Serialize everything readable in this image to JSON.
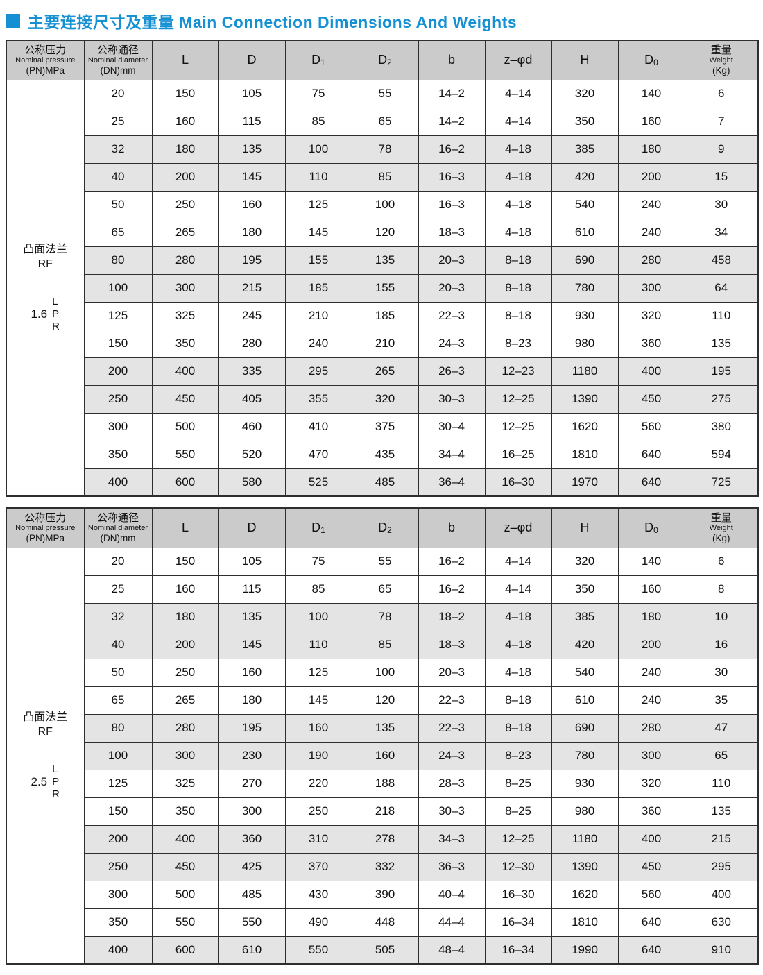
{
  "title": {
    "zh": "主要连接尺寸及重量",
    "en": "Main Connection Dimensions And Weights"
  },
  "columns": {
    "pressure_zh": "公称压力",
    "pressure_en": "Nominal pressure",
    "pressure_unit": "(PN)MPa",
    "dn_zh": "公称通径",
    "dn_en": "Nominal diameter",
    "dn_unit": "(DN)mm",
    "dims": [
      "L",
      "D",
      "D1",
      "D2",
      "b",
      "z–φd",
      "H",
      "D0"
    ],
    "weight_zh": "重量",
    "weight_en": "Weight",
    "weight_unit": "(Kg)"
  },
  "tables": [
    {
      "flange_zh": "凸面法兰",
      "flange_en": "RF",
      "pressure_value": "1.6",
      "pressure_letters": [
        "L",
        "P",
        "R"
      ],
      "rows": [
        [
          "20",
          "150",
          "105",
          "75",
          "55",
          "14–2",
          "4–14",
          "320",
          "140",
          "6"
        ],
        [
          "25",
          "160",
          "115",
          "85",
          "65",
          "14–2",
          "4–14",
          "350",
          "160",
          "7"
        ],
        [
          "32",
          "180",
          "135",
          "100",
          "78",
          "16–2",
          "4–18",
          "385",
          "180",
          "9"
        ],
        [
          "40",
          "200",
          "145",
          "110",
          "85",
          "16–3",
          "4–18",
          "420",
          "200",
          "15"
        ],
        [
          "50",
          "250",
          "160",
          "125",
          "100",
          "16–3",
          "4–18",
          "540",
          "240",
          "30"
        ],
        [
          "65",
          "265",
          "180",
          "145",
          "120",
          "18–3",
          "4–18",
          "610",
          "240",
          "34"
        ],
        [
          "80",
          "280",
          "195",
          "155",
          "135",
          "20–3",
          "8–18",
          "690",
          "280",
          "458"
        ],
        [
          "100",
          "300",
          "215",
          "185",
          "155",
          "20–3",
          "8–18",
          "780",
          "300",
          "64"
        ],
        [
          "125",
          "325",
          "245",
          "210",
          "185",
          "22–3",
          "8–18",
          "930",
          "320",
          "110"
        ],
        [
          "150",
          "350",
          "280",
          "240",
          "210",
          "24–3",
          "8–23",
          "980",
          "360",
          "135"
        ],
        [
          "200",
          "400",
          "335",
          "295",
          "265",
          "26–3",
          "12–23",
          "1180",
          "400",
          "195"
        ],
        [
          "250",
          "450",
          "405",
          "355",
          "320",
          "30–3",
          "12–25",
          "1390",
          "450",
          "275"
        ],
        [
          "300",
          "500",
          "460",
          "410",
          "375",
          "30–4",
          "12–25",
          "1620",
          "560",
          "380"
        ],
        [
          "350",
          "550",
          "520",
          "470",
          "435",
          "34–4",
          "16–25",
          "1810",
          "640",
          "594"
        ],
        [
          "400",
          "600",
          "580",
          "525",
          "485",
          "36–4",
          "16–30",
          "1970",
          "640",
          "725"
        ]
      ]
    },
    {
      "flange_zh": "凸面法兰",
      "flange_en": "RF",
      "pressure_value": "2.5",
      "pressure_letters": [
        "L",
        "P",
        "R"
      ],
      "rows": [
        [
          "20",
          "150",
          "105",
          "75",
          "55",
          "16–2",
          "4–14",
          "320",
          "140",
          "6"
        ],
        [
          "25",
          "160",
          "115",
          "85",
          "65",
          "16–2",
          "4–14",
          "350",
          "160",
          "8"
        ],
        [
          "32",
          "180",
          "135",
          "100",
          "78",
          "18–2",
          "4–18",
          "385",
          "180",
          "10"
        ],
        [
          "40",
          "200",
          "145",
          "110",
          "85",
          "18–3",
          "4–18",
          "420",
          "200",
          "16"
        ],
        [
          "50",
          "250",
          "160",
          "125",
          "100",
          "20–3",
          "4–18",
          "540",
          "240",
          "30"
        ],
        [
          "65",
          "265",
          "180",
          "145",
          "120",
          "22–3",
          "8–18",
          "610",
          "240",
          "35"
        ],
        [
          "80",
          "280",
          "195",
          "160",
          "135",
          "22–3",
          "8–18",
          "690",
          "280",
          "47"
        ],
        [
          "100",
          "300",
          "230",
          "190",
          "160",
          "24–3",
          "8–23",
          "780",
          "300",
          "65"
        ],
        [
          "125",
          "325",
          "270",
          "220",
          "188",
          "28–3",
          "8–25",
          "930",
          "320",
          "110"
        ],
        [
          "150",
          "350",
          "300",
          "250",
          "218",
          "30–3",
          "8–25",
          "980",
          "360",
          "135"
        ],
        [
          "200",
          "400",
          "360",
          "310",
          "278",
          "34–3",
          "12–25",
          "1180",
          "400",
          "215"
        ],
        [
          "250",
          "450",
          "425",
          "370",
          "332",
          "36–3",
          "12–30",
          "1390",
          "450",
          "295"
        ],
        [
          "300",
          "500",
          "485",
          "430",
          "390",
          "40–4",
          "16–30",
          "1620",
          "560",
          "400"
        ],
        [
          "350",
          "550",
          "550",
          "490",
          "448",
          "44–4",
          "16–34",
          "1810",
          "640",
          "630"
        ],
        [
          "400",
          "600",
          "610",
          "550",
          "505",
          "48–4",
          "16–34",
          "1990",
          "640",
          "910"
        ]
      ]
    }
  ]
}
